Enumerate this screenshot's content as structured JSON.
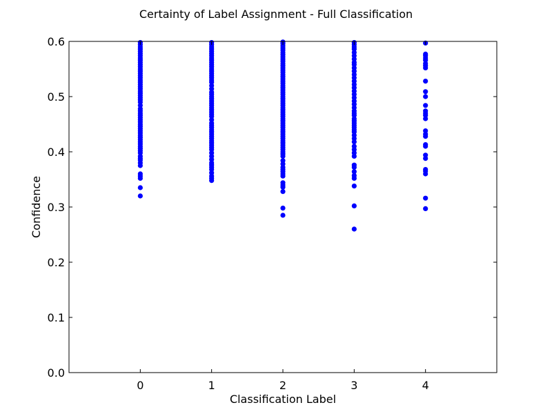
{
  "chart_data": {
    "type": "scatter",
    "title": "Certainty of Label Assignment - Full Classification",
    "xlabel": "Classification Label",
    "ylabel": "Confidence",
    "xlim": [
      -1,
      5
    ],
    "ylim": [
      0.0,
      0.6
    ],
    "xticks": [
      0,
      1,
      2,
      3,
      4
    ],
    "xtick_labels": [
      "0",
      "1",
      "2",
      "3",
      "4"
    ],
    "yticks": [
      0.0,
      0.1,
      0.2,
      0.3,
      0.4,
      0.5,
      0.6
    ],
    "ytick_labels": [
      "0.0",
      "0.1",
      "0.2",
      "0.3",
      "0.4",
      "0.5",
      "0.6"
    ],
    "grid": false,
    "marker_color": "#0000ff",
    "series": [
      {
        "points": [
          [
            0,
            0.32
          ],
          [
            0,
            0.335
          ],
          [
            0,
            0.352
          ],
          [
            0,
            0.356
          ],
          [
            0,
            0.36
          ],
          [
            0,
            0.375
          ],
          [
            0,
            0.38
          ],
          [
            0,
            0.385
          ],
          [
            0,
            0.388
          ],
          [
            0,
            0.392
          ],
          [
            0,
            0.398
          ],
          [
            0,
            0.402
          ],
          [
            0,
            0.406
          ],
          [
            0,
            0.41
          ],
          [
            0,
            0.414
          ],
          [
            0,
            0.418
          ],
          [
            0,
            0.422
          ],
          [
            0,
            0.426
          ],
          [
            0,
            0.43
          ],
          [
            0,
            0.434
          ],
          [
            0,
            0.438
          ],
          [
            0,
            0.442
          ],
          [
            0,
            0.446
          ],
          [
            0,
            0.45
          ],
          [
            0,
            0.454
          ],
          [
            0,
            0.458
          ],
          [
            0,
            0.462
          ],
          [
            0,
            0.466
          ],
          [
            0,
            0.47
          ],
          [
            0,
            0.474
          ],
          [
            0,
            0.478
          ],
          [
            0,
            0.484
          ],
          [
            0,
            0.49
          ],
          [
            0,
            0.494
          ],
          [
            0,
            0.498
          ],
          [
            0,
            0.502
          ],
          [
            0,
            0.506
          ],
          [
            0,
            0.51
          ],
          [
            0,
            0.514
          ],
          [
            0,
            0.518
          ],
          [
            0,
            0.522
          ],
          [
            0,
            0.526
          ],
          [
            0,
            0.53
          ],
          [
            0,
            0.534
          ],
          [
            0,
            0.538
          ],
          [
            0,
            0.542
          ],
          [
            0,
            0.546
          ],
          [
            0,
            0.55
          ],
          [
            0,
            0.554
          ],
          [
            0,
            0.558
          ],
          [
            0,
            0.562
          ],
          [
            0,
            0.566
          ],
          [
            0,
            0.57
          ],
          [
            0,
            0.574
          ],
          [
            0,
            0.578
          ],
          [
            0,
            0.582
          ],
          [
            0,
            0.586
          ],
          [
            0,
            0.59
          ],
          [
            0,
            0.594
          ],
          [
            0,
            0.598
          ],
          [
            1,
            0.348
          ],
          [
            1,
            0.352
          ],
          [
            1,
            0.356
          ],
          [
            1,
            0.362
          ],
          [
            1,
            0.368
          ],
          [
            1,
            0.372
          ],
          [
            1,
            0.376
          ],
          [
            1,
            0.38
          ],
          [
            1,
            0.386
          ],
          [
            1,
            0.392
          ],
          [
            1,
            0.398
          ],
          [
            1,
            0.404
          ],
          [
            1,
            0.408
          ],
          [
            1,
            0.412
          ],
          [
            1,
            0.416
          ],
          [
            1,
            0.42
          ],
          [
            1,
            0.424
          ],
          [
            1,
            0.428
          ],
          [
            1,
            0.432
          ],
          [
            1,
            0.436
          ],
          [
            1,
            0.44
          ],
          [
            1,
            0.444
          ],
          [
            1,
            0.448
          ],
          [
            1,
            0.452
          ],
          [
            1,
            0.458
          ],
          [
            1,
            0.464
          ],
          [
            1,
            0.468
          ],
          [
            1,
            0.472
          ],
          [
            1,
            0.476
          ],
          [
            1,
            0.48
          ],
          [
            1,
            0.484
          ],
          [
            1,
            0.488
          ],
          [
            1,
            0.492
          ],
          [
            1,
            0.496
          ],
          [
            1,
            0.5
          ],
          [
            1,
            0.504
          ],
          [
            1,
            0.508
          ],
          [
            1,
            0.514
          ],
          [
            1,
            0.52
          ],
          [
            1,
            0.526
          ],
          [
            1,
            0.53
          ],
          [
            1,
            0.534
          ],
          [
            1,
            0.538
          ],
          [
            1,
            0.542
          ],
          [
            1,
            0.546
          ],
          [
            1,
            0.55
          ],
          [
            1,
            0.554
          ],
          [
            1,
            0.558
          ],
          [
            1,
            0.562
          ],
          [
            1,
            0.566
          ],
          [
            1,
            0.57
          ],
          [
            1,
            0.574
          ],
          [
            1,
            0.578
          ],
          [
            1,
            0.582
          ],
          [
            1,
            0.586
          ],
          [
            1,
            0.59
          ],
          [
            1,
            0.594
          ],
          [
            1,
            0.598
          ],
          [
            2,
            0.285
          ],
          [
            2,
            0.298
          ],
          [
            2,
            0.328
          ],
          [
            2,
            0.336
          ],
          [
            2,
            0.34
          ],
          [
            2,
            0.344
          ],
          [
            2,
            0.356
          ],
          [
            2,
            0.36
          ],
          [
            2,
            0.364
          ],
          [
            2,
            0.368
          ],
          [
            2,
            0.372
          ],
          [
            2,
            0.378
          ],
          [
            2,
            0.384
          ],
          [
            2,
            0.392
          ],
          [
            2,
            0.396
          ],
          [
            2,
            0.4
          ],
          [
            2,
            0.404
          ],
          [
            2,
            0.408
          ],
          [
            2,
            0.412
          ],
          [
            2,
            0.416
          ],
          [
            2,
            0.42
          ],
          [
            2,
            0.424
          ],
          [
            2,
            0.428
          ],
          [
            2,
            0.432
          ],
          [
            2,
            0.436
          ],
          [
            2,
            0.44
          ],
          [
            2,
            0.444
          ],
          [
            2,
            0.448
          ],
          [
            2,
            0.452
          ],
          [
            2,
            0.456
          ],
          [
            2,
            0.46
          ],
          [
            2,
            0.464
          ],
          [
            2,
            0.468
          ],
          [
            2,
            0.472
          ],
          [
            2,
            0.476
          ],
          [
            2,
            0.48
          ],
          [
            2,
            0.484
          ],
          [
            2,
            0.488
          ],
          [
            2,
            0.492
          ],
          [
            2,
            0.496
          ],
          [
            2,
            0.5
          ],
          [
            2,
            0.504
          ],
          [
            2,
            0.508
          ],
          [
            2,
            0.512
          ],
          [
            2,
            0.516
          ],
          [
            2,
            0.52
          ],
          [
            2,
            0.524
          ],
          [
            2,
            0.528
          ],
          [
            2,
            0.532
          ],
          [
            2,
            0.536
          ],
          [
            2,
            0.54
          ],
          [
            2,
            0.544
          ],
          [
            2,
            0.548
          ],
          [
            2,
            0.552
          ],
          [
            2,
            0.556
          ],
          [
            2,
            0.56
          ],
          [
            2,
            0.564
          ],
          [
            2,
            0.568
          ],
          [
            2,
            0.572
          ],
          [
            2,
            0.576
          ],
          [
            2,
            0.58
          ],
          [
            2,
            0.584
          ],
          [
            2,
            0.588
          ],
          [
            2,
            0.592
          ],
          [
            2,
            0.596
          ],
          [
            2,
            0.599
          ],
          [
            3,
            0.26
          ],
          [
            3,
            0.302
          ],
          [
            3,
            0.338
          ],
          [
            3,
            0.352
          ],
          [
            3,
            0.357
          ],
          [
            3,
            0.364
          ],
          [
            3,
            0.372
          ],
          [
            3,
            0.376
          ],
          [
            3,
            0.392
          ],
          [
            3,
            0.398
          ],
          [
            3,
            0.404
          ],
          [
            3,
            0.41
          ],
          [
            3,
            0.418
          ],
          [
            3,
            0.424
          ],
          [
            3,
            0.43
          ],
          [
            3,
            0.436
          ],
          [
            3,
            0.44
          ],
          [
            3,
            0.444
          ],
          [
            3,
            0.448
          ],
          [
            3,
            0.452
          ],
          [
            3,
            0.456
          ],
          [
            3,
            0.46
          ],
          [
            3,
            0.466
          ],
          [
            3,
            0.47
          ],
          [
            3,
            0.474
          ],
          [
            3,
            0.48
          ],
          [
            3,
            0.486
          ],
          [
            3,
            0.492
          ],
          [
            3,
            0.498
          ],
          [
            3,
            0.504
          ],
          [
            3,
            0.51
          ],
          [
            3,
            0.516
          ],
          [
            3,
            0.522
          ],
          [
            3,
            0.528
          ],
          [
            3,
            0.534
          ],
          [
            3,
            0.54
          ],
          [
            3,
            0.546
          ],
          [
            3,
            0.552
          ],
          [
            3,
            0.558
          ],
          [
            3,
            0.562
          ],
          [
            3,
            0.568
          ],
          [
            3,
            0.574
          ],
          [
            3,
            0.58
          ],
          [
            3,
            0.586
          ],
          [
            3,
            0.59
          ],
          [
            3,
            0.594
          ],
          [
            3,
            0.598
          ],
          [
            4,
            0.297
          ],
          [
            4,
            0.316
          ],
          [
            4,
            0.36
          ],
          [
            4,
            0.365
          ],
          [
            4,
            0.368
          ],
          [
            4,
            0.388
          ],
          [
            4,
            0.394
          ],
          [
            4,
            0.41
          ],
          [
            4,
            0.413
          ],
          [
            4,
            0.428
          ],
          [
            4,
            0.432
          ],
          [
            4,
            0.438
          ],
          [
            4,
            0.46
          ],
          [
            4,
            0.466
          ],
          [
            4,
            0.47
          ],
          [
            4,
            0.474
          ],
          [
            4,
            0.484
          ],
          [
            4,
            0.5
          ],
          [
            4,
            0.509
          ],
          [
            4,
            0.528
          ],
          [
            4,
            0.552
          ],
          [
            4,
            0.556
          ],
          [
            4,
            0.56
          ],
          [
            4,
            0.566
          ],
          [
            4,
            0.57
          ],
          [
            4,
            0.574
          ],
          [
            4,
            0.577
          ],
          [
            4,
            0.597
          ]
        ]
      }
    ]
  }
}
